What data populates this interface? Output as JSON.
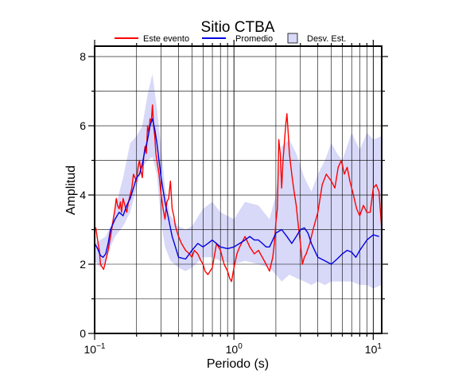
{
  "chart_data": {
    "type": "line",
    "title": "Sitio CTBA",
    "xlabel": "Periodo (s)",
    "ylabel": "Amplitud",
    "xscale": "log",
    "xlim": [
      0.1,
      11.5
    ],
    "ylim": [
      0,
      8.3
    ],
    "xticks": [
      {
        "value": 0.1,
        "base": "10",
        "exp": "−1"
      },
      {
        "value": 1,
        "base": "10",
        "exp": "0"
      },
      {
        "value": 10,
        "base": "10",
        "exp": "1"
      }
    ],
    "yticks": [
      0,
      2,
      4,
      6,
      8
    ],
    "grid": true,
    "legend_position": "top",
    "legend": [
      {
        "label": "Este evento",
        "kind": "line",
        "color": "#ff0000"
      },
      {
        "label": "Promedio",
        "kind": "line",
        "color": "#0000e0"
      },
      {
        "label": "Desv. Est.",
        "kind": "box",
        "color": "#d8d8f8"
      }
    ],
    "band": {
      "name": "Desv. Est.",
      "color": "#d8d8f8",
      "x": [
        0.1,
        0.11,
        0.12,
        0.13,
        0.14,
        0.16,
        0.18,
        0.2,
        0.22,
        0.24,
        0.26,
        0.28,
        0.3,
        0.32,
        0.35,
        0.4,
        0.45,
        0.5,
        0.6,
        0.7,
        0.8,
        1.0,
        1.2,
        1.5,
        1.8,
        2.0,
        2.2,
        2.5,
        2.8,
        3.2,
        3.6,
        4.0,
        4.5,
        5.0,
        5.5,
        6.0,
        7.0,
        8.0,
        9.0,
        10.0,
        11.5
      ],
      "upper": [
        2.6,
        2.7,
        2.8,
        3.1,
        3.6,
        4.5,
        5.5,
        5.7,
        6.0,
        6.9,
        7.5,
        6.5,
        5.4,
        4.2,
        3.4,
        3.1,
        3.0,
        3.1,
        3.6,
        3.8,
        3.5,
        3.3,
        3.8,
        3.7,
        3.3,
        4.0,
        5.4,
        5.6,
        5.2,
        4.5,
        4.1,
        4.6,
        5.0,
        5.5,
        5.2,
        5.0,
        5.8,
        5.3,
        5.8,
        5.6,
        5.7
      ],
      "lower": [
        2.1,
        1.9,
        2.1,
        2.5,
        2.8,
        3.1,
        3.5,
        4.2,
        4.8,
        5.0,
        5.1,
        4.6,
        3.2,
        2.5,
        2.1,
        1.9,
        1.8,
        1.9,
        2.2,
        2.2,
        2.1,
        2.0,
        2.1,
        2.0,
        1.9,
        1.7,
        1.5,
        1.7,
        1.6,
        1.5,
        1.4,
        1.5,
        1.4,
        1.5,
        1.5,
        1.5,
        1.5,
        1.4,
        1.4,
        1.3,
        1.4
      ]
    },
    "series": [
      {
        "name": "Este evento",
        "color": "#ff0000",
        "x": [
          0.1,
          0.102,
          0.105,
          0.108,
          0.11,
          0.112,
          0.116,
          0.12,
          0.125,
          0.13,
          0.135,
          0.14,
          0.143,
          0.146,
          0.15,
          0.153,
          0.156,
          0.16,
          0.165,
          0.17,
          0.175,
          0.18,
          0.185,
          0.19,
          0.195,
          0.2,
          0.205,
          0.21,
          0.215,
          0.22,
          0.225,
          0.23,
          0.235,
          0.24,
          0.245,
          0.25,
          0.255,
          0.26,
          0.265,
          0.27,
          0.275,
          0.28,
          0.29,
          0.3,
          0.31,
          0.32,
          0.33,
          0.34,
          0.35,
          0.36,
          0.37,
          0.38,
          0.4,
          0.42,
          0.45,
          0.48,
          0.5,
          0.52,
          0.55,
          0.58,
          0.6,
          0.62,
          0.65,
          0.7,
          0.75,
          0.8,
          0.85,
          0.9,
          0.93,
          0.96,
          1.0,
          1.05,
          1.1,
          1.2,
          1.3,
          1.4,
          1.5,
          1.6,
          1.7,
          1.8,
          1.9,
          1.95,
          2.0,
          2.05,
          2.1,
          2.15,
          2.2,
          2.25,
          2.3,
          2.35,
          2.4,
          2.45,
          2.5,
          2.6,
          2.7,
          2.8,
          2.9,
          3.0,
          3.1,
          3.2,
          3.3,
          3.5,
          3.7,
          4.0,
          4.3,
          4.6,
          5.0,
          5.3,
          5.6,
          5.9,
          6.2,
          6.5,
          6.8,
          7.2,
          7.6,
          8.0,
          8.5,
          9.0,
          9.5,
          10.0,
          10.5,
          11.0,
          11.5
        ],
        "y": [
          3.0,
          3.05,
          2.7,
          2.4,
          2.0,
          1.95,
          1.85,
          2.1,
          2.4,
          2.8,
          3.2,
          3.6,
          3.9,
          3.7,
          3.6,
          3.8,
          3.5,
          3.9,
          3.7,
          3.5,
          3.8,
          4.0,
          4.2,
          4.6,
          4.5,
          4.4,
          4.8,
          5.0,
          4.7,
          4.5,
          5.1,
          5.4,
          5.2,
          6.0,
          5.8,
          6.2,
          6.1,
          6.6,
          6.0,
          5.7,
          5.2,
          5.0,
          4.6,
          4.0,
          3.6,
          3.3,
          3.8,
          3.9,
          4.4,
          3.6,
          3.4,
          3.1,
          2.8,
          2.6,
          2.4,
          2.3,
          2.2,
          2.4,
          2.3,
          2.1,
          2.0,
          1.8,
          1.7,
          1.9,
          2.6,
          2.4,
          2.0,
          1.8,
          1.6,
          1.5,
          1.9,
          2.3,
          2.5,
          2.8,
          2.5,
          2.3,
          2.4,
          2.2,
          2.0,
          1.8,
          2.2,
          2.6,
          3.2,
          3.6,
          5.6,
          5.2,
          4.2,
          5.0,
          5.5,
          6.0,
          6.35,
          5.8,
          5.2,
          4.6,
          4.1,
          3.7,
          3.1,
          2.6,
          2.0,
          2.2,
          2.3,
          2.6,
          3.0,
          3.5,
          4.3,
          4.6,
          4.4,
          4.2,
          4.8,
          5.0,
          4.6,
          4.8,
          4.4,
          4.0,
          3.6,
          3.4,
          3.7,
          3.5,
          3.5,
          4.2,
          4.3,
          4.1,
          3.0
        ]
      },
      {
        "name": "Promedio",
        "color": "#0000e0",
        "x": [
          0.1,
          0.105,
          0.11,
          0.115,
          0.12,
          0.125,
          0.13,
          0.14,
          0.15,
          0.16,
          0.17,
          0.18,
          0.19,
          0.2,
          0.21,
          0.22,
          0.23,
          0.24,
          0.25,
          0.26,
          0.27,
          0.28,
          0.3,
          0.32,
          0.34,
          0.36,
          0.38,
          0.4,
          0.45,
          0.5,
          0.55,
          0.6,
          0.65,
          0.7,
          0.8,
          0.9,
          1.0,
          1.1,
          1.2,
          1.3,
          1.4,
          1.5,
          1.6,
          1.7,
          1.8,
          1.9,
          2.0,
          2.2,
          2.4,
          2.6,
          2.8,
          3.0,
          3.2,
          3.4,
          3.6,
          4.0,
          4.5,
          5.0,
          5.5,
          6.0,
          6.5,
          7.0,
          7.5,
          8.0,
          9.0,
          10.0,
          11.0
        ],
        "y": [
          2.6,
          2.45,
          2.25,
          2.2,
          2.3,
          2.6,
          3.0,
          3.3,
          3.5,
          3.4,
          3.7,
          3.9,
          4.2,
          4.5,
          4.6,
          4.9,
          5.3,
          5.6,
          6.0,
          6.2,
          5.9,
          5.5,
          4.5,
          3.8,
          3.3,
          2.8,
          2.5,
          2.2,
          2.15,
          2.4,
          2.6,
          2.5,
          2.6,
          2.7,
          2.5,
          2.45,
          2.5,
          2.6,
          2.7,
          2.8,
          2.7,
          2.7,
          2.6,
          2.5,
          2.5,
          2.7,
          2.9,
          3.0,
          2.8,
          2.6,
          2.8,
          3.0,
          3.05,
          2.9,
          2.6,
          2.2,
          2.1,
          2.0,
          2.15,
          2.3,
          2.4,
          2.35,
          2.2,
          2.4,
          2.7,
          2.85,
          2.8
        ]
      }
    ]
  }
}
